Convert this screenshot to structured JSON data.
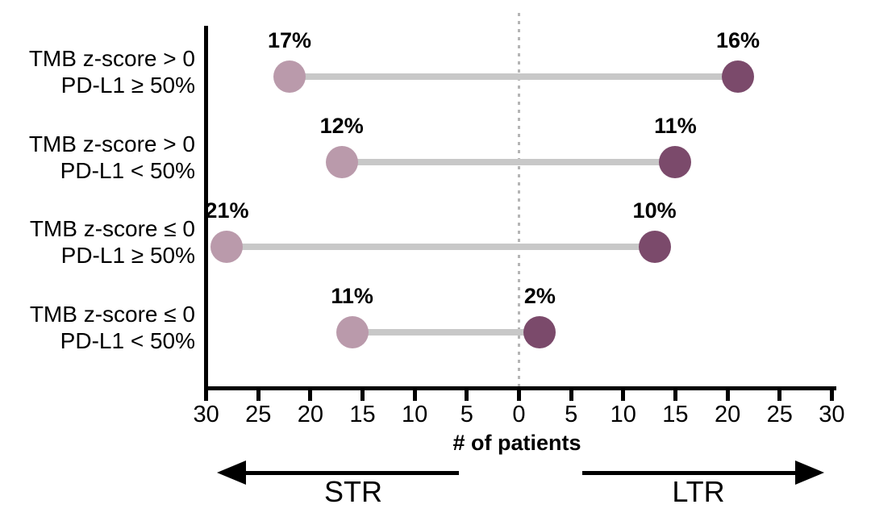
{
  "chart_data": {
    "type": "dumbbell",
    "title": "",
    "xlabel": "# of patients",
    "groups": {
      "left": "STR",
      "right": "LTR"
    },
    "axis": {
      "tick_labels": [
        "30",
        "25",
        "20",
        "15",
        "10",
        "5",
        "0",
        "5",
        "10",
        "15",
        "20",
        "25",
        "30"
      ],
      "tick_step": 5,
      "max_each_side": 30,
      "zero_line": "dotted"
    },
    "rows": [
      {
        "label_line1": "TMB z-score > 0",
        "label_line2": "PD-L1 ≥ 50%",
        "str_patients": 22,
        "str_pct": "17%",
        "ltr_patients": 21,
        "ltr_pct": "16%"
      },
      {
        "label_line1": "TMB z-score > 0",
        "label_line2": "PD-L1 < 50%",
        "str_patients": 17,
        "str_pct": "12%",
        "ltr_patients": 15,
        "ltr_pct": "11%"
      },
      {
        "label_line1": "TMB z-score ≤ 0",
        "label_line2": "PD-L1 ≥ 50%",
        "str_patients": 28,
        "str_pct": "21%",
        "ltr_patients": 13,
        "ltr_pct": "10%"
      },
      {
        "label_line1": "TMB z-score ≤ 0",
        "label_line2": "PD-L1 < 50%",
        "str_patients": 16,
        "str_pct": "11%",
        "ltr_patients": 2,
        "ltr_pct": "2%"
      }
    ],
    "colors": {
      "str_dot": "#ba9aab",
      "ltr_dot": "#7b4a6b",
      "connector": "#c8c8c8",
      "zero_line": "#b5b5b5",
      "axis": "#000000",
      "text": "#000000"
    }
  }
}
